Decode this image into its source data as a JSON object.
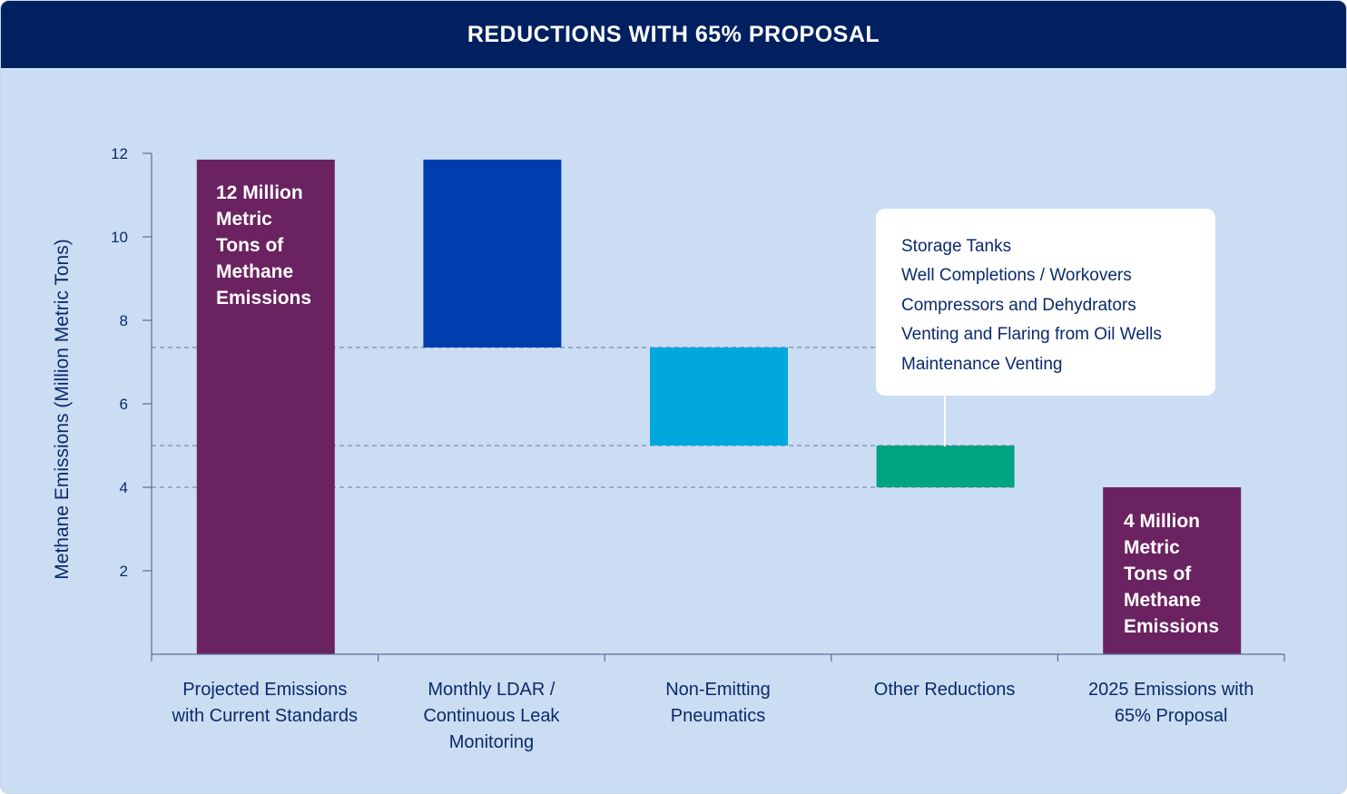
{
  "header": {
    "title": "REDUCTIONS WITH 65% PROPOSAL"
  },
  "colors": {
    "background": "#cbddf2",
    "header": "#002060",
    "purple": "#6b2260",
    "blue": "#003eb0",
    "cyan": "#00a8de",
    "green": "#00a382",
    "text": "#0b2a6b"
  },
  "chart_data": {
    "type": "waterfall",
    "ylabel": "Methane Emissions (Million Metric Tons)",
    "ylim": [
      0,
      12
    ],
    "yticks": [
      2,
      4,
      6,
      8,
      10,
      12
    ],
    "grid": false,
    "reference_lines": [
      7.35,
      5.0,
      4.0
    ],
    "categories": [
      "Projected Emissions with Current Standards",
      "Monthly LDAR / Continuous Leak Monitoring",
      "Non-Emitting Pneumatics",
      "Other Reductions",
      "2025 Emissions with 65% Proposal"
    ],
    "category_lines": [
      [
        "Projected Emissions",
        "with Current Standards"
      ],
      [
        "Monthly LDAR /",
        "Continuous Leak",
        "Monitoring"
      ],
      [
        "Non-Emitting",
        "Pneumatics"
      ],
      [
        "Other Reductions"
      ],
      [
        "2025 Emissions with",
        "65% Proposal"
      ]
    ],
    "bars": [
      {
        "kind": "total",
        "start": 0,
        "end": 11.85,
        "color": "#6b2260"
      },
      {
        "kind": "reduction",
        "start": 7.35,
        "end": 11.85,
        "color": "#003eb0"
      },
      {
        "kind": "reduction",
        "start": 5.0,
        "end": 7.35,
        "color": "#00a8de"
      },
      {
        "kind": "reduction",
        "start": 4.0,
        "end": 5.0,
        "color": "#00a382"
      },
      {
        "kind": "total",
        "start": 0,
        "end": 4.0,
        "color": "#6b2260"
      }
    ],
    "annotations": {
      "start_total": [
        "12 Million",
        "Metric",
        "Tons of",
        "Methane",
        "Emissions"
      ],
      "end_total": [
        "4 Million",
        "Metric",
        "Tons of",
        "Methane",
        "Emissions"
      ]
    },
    "callout_items": [
      "Storage Tanks",
      "Well Completions / Workovers",
      "Compressors and Dehydrators",
      "Venting and Flaring from Oil Wells",
      "Maintenance Venting"
    ]
  }
}
